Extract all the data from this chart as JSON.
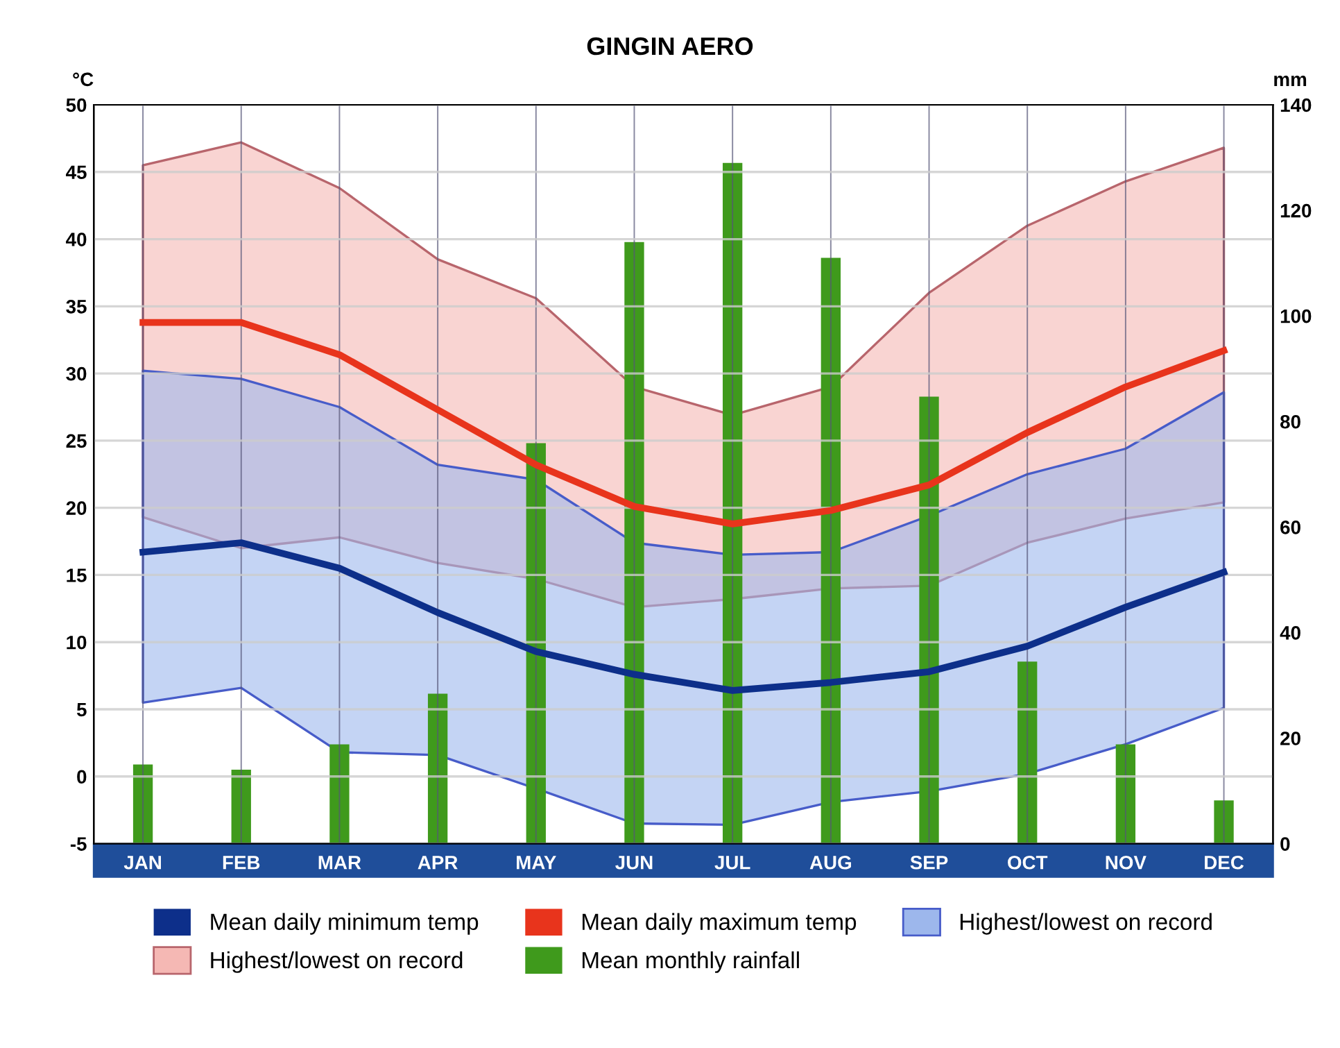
{
  "chart_data": {
    "type": "line",
    "title": "GINGIN AERO",
    "ylabel": "°C",
    "y2label": "mm",
    "categories": [
      "JAN",
      "FEB",
      "MAR",
      "APR",
      "MAY",
      "JUN",
      "JUL",
      "AUG",
      "SEP",
      "OCT",
      "NOV",
      "DEC"
    ],
    "series": [
      {
        "name": "Mean daily minimum temp",
        "color": "#0d2f8a",
        "values": [
          16.7,
          17.4,
          15.5,
          12.2,
          9.3,
          7.6,
          6.4,
          7.0,
          7.8,
          9.7,
          12.6,
          15.2
        ]
      },
      {
        "name": "Highest/lowest on record",
        "color": "#f5b8b4",
        "values": [
          null,
          null,
          null,
          null,
          null,
          null,
          null,
          null,
          null,
          null,
          null,
          null
        ],
        "upper": [
          45.5,
          47.2,
          43.8,
          38.5,
          35.6,
          29.0,
          26.9,
          29.0,
          36.0,
          41.0,
          44.3,
          46.8
        ],
        "lower": [
          19.3,
          17.0,
          17.8,
          15.9,
          14.7,
          12.6,
          13.2,
          14.0,
          14.2,
          17.4,
          19.2,
          20.4
        ]
      },
      {
        "name": "Mean daily maximum temp",
        "color": "#e8341c",
        "values": [
          33.8,
          33.8,
          31.4,
          27.3,
          23.2,
          20.1,
          18.8,
          19.8,
          21.7,
          25.6,
          29.0,
          31.7
        ]
      },
      {
        "name": "Mean monthly rainfall",
        "type": "bar",
        "axis": "y2",
        "color": "#3f9a1c",
        "values": [
          15,
          14,
          18.8,
          28.4,
          75.9,
          114,
          129,
          111,
          84.7,
          34.5,
          18.8,
          8.2
        ]
      },
      {
        "name": "Highest/lowest on record",
        "color": "#9db7ec",
        "values": [
          null,
          null,
          null,
          null,
          null,
          null,
          null,
          null,
          null,
          null,
          null,
          null
        ],
        "upper": [
          30.2,
          29.6,
          27.5,
          23.2,
          22.1,
          17.4,
          16.5,
          16.7,
          19.4,
          22.5,
          24.4,
          28.6
        ],
        "lower": [
          5.5,
          6.6,
          1.8,
          1.6,
          -0.9,
          -3.5,
          -3.6,
          -1.9,
          -1.1,
          0.2,
          2.4,
          5.1
        ]
      }
    ],
    "ylim": [
      -5,
      50
    ],
    "yticks": [
      -5,
      0,
      5,
      10,
      15,
      20,
      25,
      30,
      35,
      40,
      45,
      50
    ],
    "y2lim": [
      0,
      140
    ],
    "y2ticks": [
      0,
      20,
      40,
      60,
      80,
      100,
      120,
      140
    ],
    "grid": true,
    "legend": "bottom",
    "marker": "none",
    "line_style": "solid"
  }
}
